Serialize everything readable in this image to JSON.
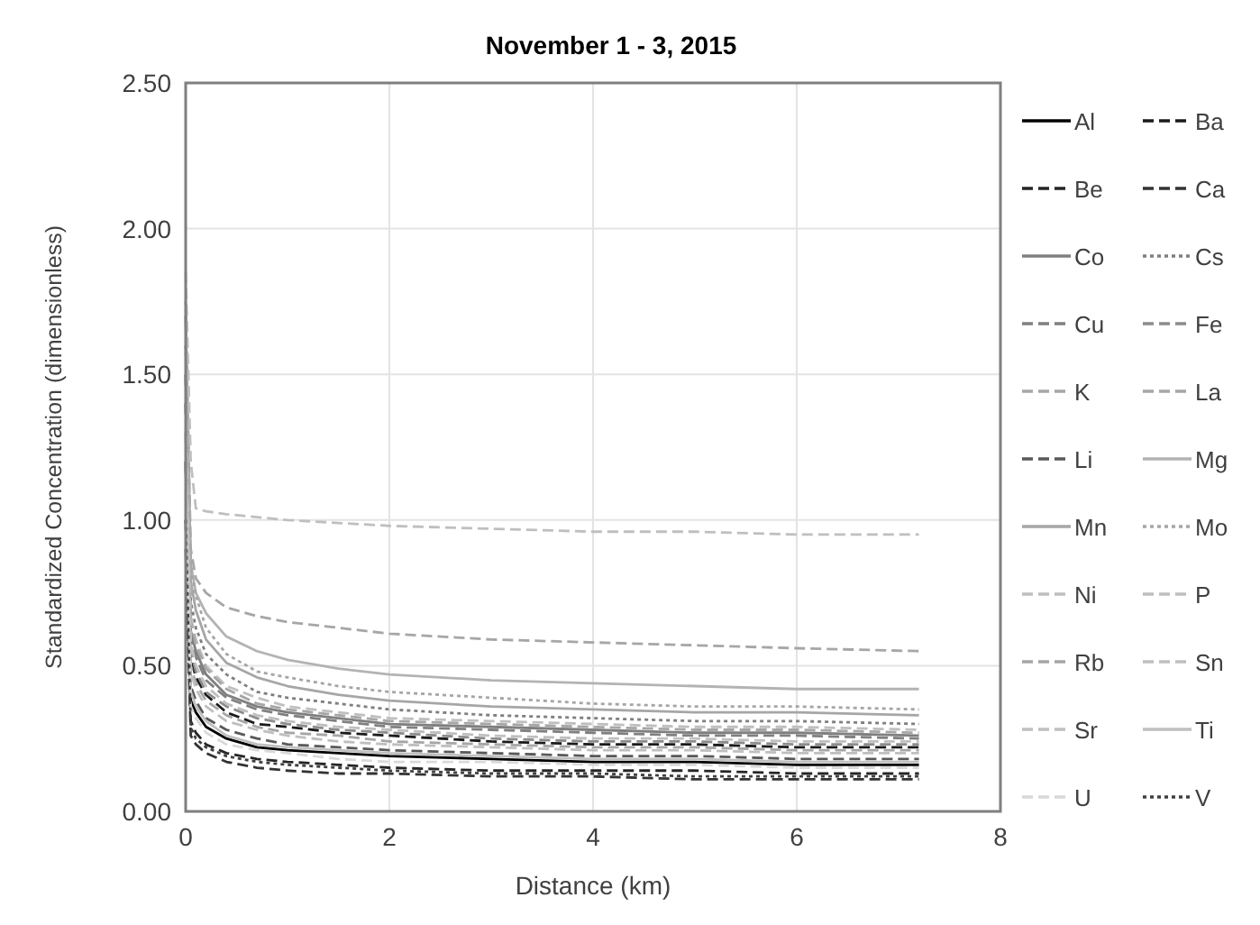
{
  "chart_data": {
    "type": "line",
    "title": "November 1 - 3, 2015",
    "xlabel": "Distance (km)",
    "ylabel": "Standardized Concentration (dimensionless)",
    "x": [
      0,
      0.05,
      0.1,
      0.2,
      0.4,
      0.7,
      1,
      1.5,
      2,
      3,
      4,
      5,
      6,
      7.2
    ],
    "xlim": [
      0,
      8
    ],
    "xticks": [
      0,
      2,
      4,
      6,
      8
    ],
    "ylim": [
      0,
      2.5
    ],
    "yticks": [
      {
        "value": 0,
        "label": "0.00"
      },
      {
        "value": 0.5,
        "label": "0.50"
      },
      {
        "value": 1,
        "label": "1.00"
      },
      {
        "value": 1.5,
        "label": "1.50"
      },
      {
        "value": 2,
        "label": "2.00"
      },
      {
        "value": 2.5,
        "label": "2.50"
      }
    ],
    "grid": true,
    "legend": "right",
    "marker": "none",
    "series": [
      {
        "name": "Al",
        "color": "#000000",
        "line_style": "solid",
        "values": [
          1.2,
          0.38,
          0.34,
          0.29,
          0.25,
          0.22,
          0.21,
          0.2,
          0.19,
          0.18,
          0.17,
          0.17,
          0.16,
          0.16
        ]
      },
      {
        "name": "Ba",
        "color": "#1a1a1a",
        "line_style": "dashed",
        "values": [
          1.4,
          0.53,
          0.46,
          0.4,
          0.34,
          0.3,
          0.29,
          0.27,
          0.26,
          0.24,
          0.23,
          0.23,
          0.22,
          0.22
        ]
      },
      {
        "name": "Be",
        "color": "#262626",
        "line_style": "dashed",
        "values": [
          1.0,
          0.31,
          0.27,
          0.23,
          0.2,
          0.18,
          0.17,
          0.16,
          0.15,
          0.14,
          0.14,
          0.14,
          0.13,
          0.13
        ]
      },
      {
        "name": "Ca",
        "color": "#333333",
        "line_style": "dashed",
        "values": [
          0.9,
          0.26,
          0.23,
          0.2,
          0.17,
          0.15,
          0.14,
          0.13,
          0.13,
          0.12,
          0.12,
          0.11,
          0.11,
          0.11
        ]
      },
      {
        "name": "Co",
        "color": "#7f7f7f",
        "line_style": "solid",
        "values": [
          1.5,
          0.62,
          0.55,
          0.47,
          0.4,
          0.36,
          0.34,
          0.32,
          0.3,
          0.29,
          0.28,
          0.27,
          0.27,
          0.26
        ]
      },
      {
        "name": "Cs",
        "color": "#7f7f7f",
        "line_style": "dotted",
        "values": [
          1.6,
          0.72,
          0.63,
          0.54,
          0.47,
          0.41,
          0.39,
          0.37,
          0.35,
          0.33,
          0.32,
          0.31,
          0.31,
          0.3
        ]
      },
      {
        "name": "Cu",
        "color": "#808080",
        "line_style": "dashed",
        "values": [
          1.5,
          0.6,
          0.53,
          0.45,
          0.39,
          0.35,
          0.33,
          0.31,
          0.29,
          0.28,
          0.27,
          0.26,
          0.26,
          0.25
        ]
      },
      {
        "name": "Fe",
        "color": "#8c8c8c",
        "line_style": "dashed",
        "values": [
          1.4,
          0.55,
          0.48,
          0.41,
          0.36,
          0.32,
          0.3,
          0.28,
          0.27,
          0.25,
          0.24,
          0.24,
          0.23,
          0.23
        ]
      },
      {
        "name": "K",
        "color": "#a6a6a6",
        "line_style": "dashed",
        "values": [
          1.7,
          0.9,
          0.8,
          0.75,
          0.7,
          0.67,
          0.65,
          0.63,
          0.61,
          0.59,
          0.58,
          0.57,
          0.56,
          0.55
        ]
      },
      {
        "name": "La",
        "color": "#a6a6a6",
        "line_style": "dashed",
        "values": [
          1.3,
          0.5,
          0.44,
          0.38,
          0.33,
          0.29,
          0.27,
          0.26,
          0.24,
          0.23,
          0.22,
          0.22,
          0.21,
          0.21
        ]
      },
      {
        "name": "Li",
        "color": "#595959",
        "line_style": "dashed",
        "values": [
          1.2,
          0.43,
          0.38,
          0.32,
          0.28,
          0.25,
          0.23,
          0.22,
          0.21,
          0.2,
          0.19,
          0.19,
          0.18,
          0.18
        ]
      },
      {
        "name": "Mg",
        "color": "#b3b3b3",
        "line_style": "solid",
        "values": [
          1.6,
          0.85,
          0.75,
          0.68,
          0.6,
          0.55,
          0.52,
          0.49,
          0.47,
          0.45,
          0.44,
          0.43,
          0.42,
          0.42
        ]
      },
      {
        "name": "Mn",
        "color": "#a6a6a6",
        "line_style": "solid",
        "values": [
          1.7,
          0.79,
          0.69,
          0.59,
          0.51,
          0.46,
          0.43,
          0.4,
          0.38,
          0.36,
          0.35,
          0.34,
          0.34,
          0.33
        ]
      },
      {
        "name": "Mo",
        "color": "#a6a6a6",
        "line_style": "dotted",
        "values": [
          1.75,
          0.84,
          0.74,
          0.63,
          0.54,
          0.48,
          0.46,
          0.43,
          0.41,
          0.39,
          0.37,
          0.36,
          0.36,
          0.35
        ]
      },
      {
        "name": "Ni",
        "color": "#bfbfbf",
        "line_style": "dashed",
        "values": [
          1.5,
          0.67,
          0.59,
          0.5,
          0.43,
          0.39,
          0.36,
          0.34,
          0.32,
          0.31,
          0.3,
          0.29,
          0.29,
          0.28
        ]
      },
      {
        "name": "P",
        "color": "#bfbfbf",
        "line_style": "dashed",
        "values": [
          1.85,
          1.2,
          1.04,
          1.03,
          1.02,
          1.01,
          1.0,
          0.99,
          0.98,
          0.97,
          0.96,
          0.96,
          0.95,
          0.95
        ]
      },
      {
        "name": "Rb",
        "color": "#a6a6a6",
        "line_style": "dashed",
        "values": [
          1.5,
          0.65,
          0.57,
          0.49,
          0.42,
          0.37,
          0.35,
          0.33,
          0.31,
          0.3,
          0.29,
          0.28,
          0.28,
          0.27
        ]
      },
      {
        "name": "Sn",
        "color": "#bfbfbf",
        "line_style": "dashed",
        "values": [
          1.4,
          0.58,
          0.5,
          0.43,
          0.37,
          0.33,
          0.31,
          0.29,
          0.28,
          0.26,
          0.25,
          0.25,
          0.24,
          0.24
        ]
      },
      {
        "name": "Sr",
        "color": "#bfbfbf",
        "line_style": "dashed",
        "values": [
          1.3,
          0.48,
          0.42,
          0.36,
          0.31,
          0.28,
          0.26,
          0.24,
          0.23,
          0.22,
          0.21,
          0.21,
          0.2,
          0.2
        ]
      },
      {
        "name": "Ti",
        "color": "#bfbfbf",
        "line_style": "solid",
        "values": [
          1.2,
          0.41,
          0.36,
          0.31,
          0.26,
          0.23,
          0.22,
          0.21,
          0.2,
          0.19,
          0.18,
          0.18,
          0.17,
          0.17
        ]
      },
      {
        "name": "U",
        "color": "#d9d9d9",
        "line_style": "dashed",
        "values": [
          1.1,
          0.36,
          0.32,
          0.27,
          0.23,
          0.21,
          0.2,
          0.18,
          0.17,
          0.17,
          0.16,
          0.16,
          0.15,
          0.15
        ]
      },
      {
        "name": "V",
        "color": "#404040",
        "line_style": "dotted",
        "values": [
          1.0,
          0.29,
          0.25,
          0.22,
          0.19,
          0.17,
          0.16,
          0.15,
          0.14,
          0.13,
          0.13,
          0.12,
          0.12,
          0.12
        ]
      }
    ]
  }
}
